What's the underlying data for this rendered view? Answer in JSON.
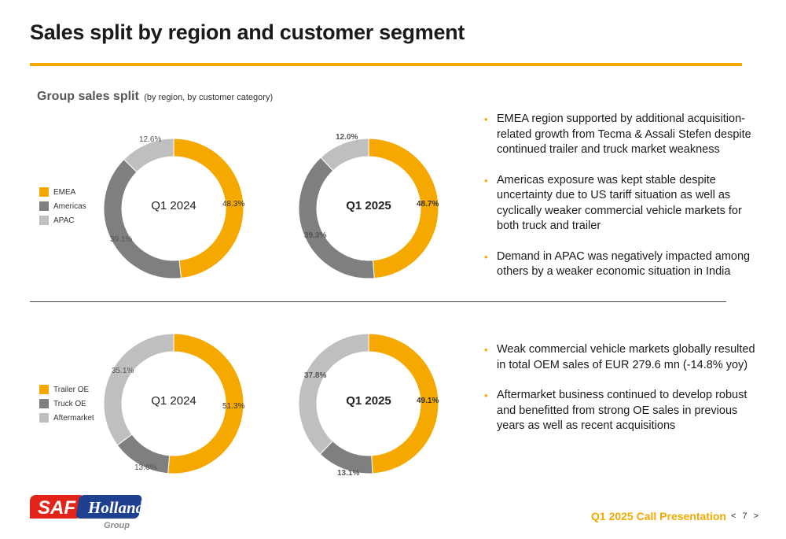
{
  "title": "Sales split by region and customer segment",
  "section": {
    "title": "Group sales split",
    "subtitle": "(by region, by customer category)"
  },
  "colors": {
    "orange": "#f5a800",
    "dark_grey": "#7f7f7f",
    "light_grey": "#bfbfbf"
  },
  "legends": {
    "region": [
      "EMEA",
      "Americas",
      "APAC"
    ],
    "segment": [
      "Trailer OE",
      "Truck OE",
      "Aftermarket"
    ]
  },
  "chart_data": [
    {
      "type": "pie",
      "center_label": "Q1 2024",
      "categories": [
        "EMEA",
        "Americas",
        "APAC"
      ],
      "values": [
        48.3,
        39.1,
        12.6
      ],
      "labels": [
        "48.3%",
        "39.1%",
        "12.6%"
      ]
    },
    {
      "type": "pie",
      "center_label": "Q1 2025",
      "categories": [
        "EMEA",
        "Americas",
        "APAC"
      ],
      "values": [
        48.7,
        39.3,
        12.0
      ],
      "labels": [
        "48.7%",
        "39.3%",
        "12.0%"
      ]
    },
    {
      "type": "pie",
      "center_label": "Q1 2024",
      "categories": [
        "Trailer OE",
        "Truck OE",
        "Aftermarket"
      ],
      "values": [
        51.3,
        13.6,
        35.1
      ],
      "labels": [
        "51.3%",
        "13.6%",
        "35.1%"
      ]
    },
    {
      "type": "pie",
      "center_label": "Q1 2025",
      "categories": [
        "Trailer OE",
        "Truck OE",
        "Aftermarket"
      ],
      "values": [
        49.1,
        13.1,
        37.8
      ],
      "labels": [
        "49.1%",
        "13.1%",
        "37.8%"
      ]
    }
  ],
  "bullets_top": [
    "EMEA region supported by additional acquisition-related growth from Tecma & Assali Stefen despite continued trailer and truck market weakness",
    "Americas exposure was kept stable despite uncertainty due to US tariff situation as well as cyclically weaker commercial vehicle markets for both truck and trailer",
    "Demand in APAC was negatively impacted among others by a weaker economic situation in India"
  ],
  "bullets_bottom": [
    "Weak commercial vehicle markets globally resulted in total OEM sales of EUR 279.6 mn (-14.8% yoy)",
    "Aftermarket business continued to develop robust and benefitted from strong OE sales in previous years as well as recent acquisitions"
  ],
  "footer": {
    "presentation": "Q1 2025 Call Presentation",
    "page": "7",
    "prev": "<",
    "next": ">",
    "logo_text": "SAF Holland",
    "logo_sub": "Group"
  }
}
